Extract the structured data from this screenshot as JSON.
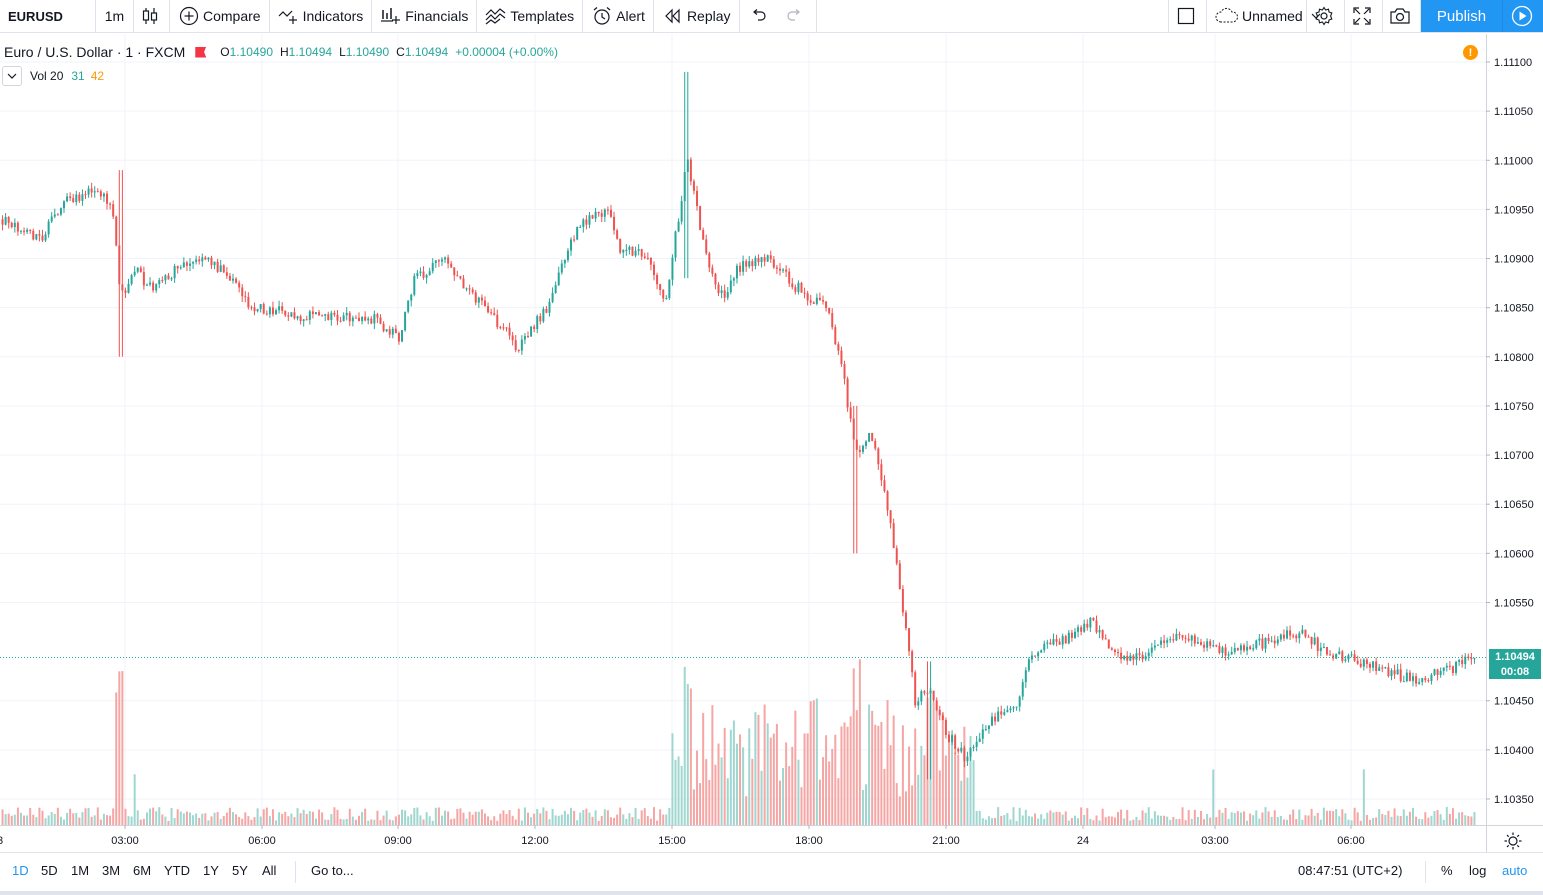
{
  "toolbar": {
    "symbol": "EURUSD",
    "interval": "1m",
    "compare": "Compare",
    "indicators": "Indicators",
    "financials": "Financials",
    "templates": "Templates",
    "alert": "Alert",
    "replay": "Replay",
    "layout_name": "Unnamed",
    "publish": "Publish"
  },
  "legend": {
    "title": "Euro / U.S. Dollar · 1 · FXCM",
    "open_label": "O",
    "open": "1.10490",
    "high_label": "H",
    "high": "1.10494",
    "low_label": "L",
    "low": "1.10490",
    "close_label": "C",
    "close": "1.10494",
    "change": "+0.00004 (+0.00%)"
  },
  "volume_legend": {
    "label": "Vol 20",
    "value": "31",
    "ma": "42"
  },
  "warning_badge": "!",
  "last_price": {
    "value": "1.10494",
    "countdown": "00:08"
  },
  "colors": {
    "up": "#26a69a",
    "down": "#ef5350",
    "vol_up": "#9fd6cf",
    "vol_down": "#f5a6a4",
    "accent": "#2196f3"
  },
  "chart_data": {
    "type": "candlestick",
    "y_ticks": [
      "1.11100",
      "1.11050",
      "1.11000",
      "1.10950",
      "1.10900",
      "1.10850",
      "1.10800",
      "1.10750",
      "1.10700",
      "1.10650",
      "1.10600",
      "1.10550",
      "1.10450",
      "1.10400",
      "1.10350"
    ],
    "ylim": [
      1.1033,
      1.1113
    ],
    "x_ticks": [
      "03:00",
      "06:00",
      "09:00",
      "12:00",
      "15:00",
      "18:00",
      "21:00",
      "24",
      "03:00",
      "06:00"
    ],
    "edge_tick": "3",
    "price_path": [
      [
        0,
        1.1094
      ],
      [
        0.025,
        1.1092
      ],
      [
        0.045,
        1.1096
      ],
      [
        0.065,
        1.1097
      ],
      [
        0.075,
        1.1095
      ],
      [
        0.08,
        1.1086
      ],
      [
        0.09,
        1.1089
      ],
      [
        0.1,
        1.1087
      ],
      [
        0.13,
        1.109
      ],
      [
        0.15,
        1.1089
      ],
      [
        0.17,
        1.1085
      ],
      [
        0.21,
        1.1084
      ],
      [
        0.25,
        1.1084
      ],
      [
        0.27,
        1.1082
      ],
      [
        0.28,
        1.1088
      ],
      [
        0.3,
        1.109
      ],
      [
        0.32,
        1.1086
      ],
      [
        0.34,
        1.1083
      ],
      [
        0.35,
        1.1081
      ],
      [
        0.37,
        1.1085
      ],
      [
        0.39,
        1.1093
      ],
      [
        0.41,
        1.1095
      ],
      [
        0.42,
        1.1091
      ],
      [
        0.44,
        1.109
      ],
      [
        0.45,
        1.1085
      ],
      [
        0.465,
        1.11
      ],
      [
        0.48,
        1.1089
      ],
      [
        0.49,
        1.1086
      ],
      [
        0.5,
        1.1089
      ],
      [
        0.52,
        1.109
      ],
      [
        0.54,
        1.1087
      ],
      [
        0.56,
        1.1085
      ],
      [
        0.57,
        1.1079
      ],
      [
        0.58,
        1.107
      ],
      [
        0.59,
        1.1072
      ],
      [
        0.6,
        1.1066
      ],
      [
        0.61,
        1.1056
      ],
      [
        0.615,
        1.1051
      ],
      [
        0.62,
        1.1045
      ],
      [
        0.63,
        1.1046
      ],
      [
        0.64,
        1.1042
      ],
      [
        0.655,
        1.1039
      ],
      [
        0.67,
        1.1043
      ],
      [
        0.69,
        1.1045
      ],
      [
        0.7,
        1.105
      ],
      [
        0.72,
        1.1051
      ],
      [
        0.74,
        1.1053
      ],
      [
        0.76,
        1.1049
      ],
      [
        0.78,
        1.105
      ],
      [
        0.8,
        1.1052
      ],
      [
        0.83,
        1.105
      ],
      [
        0.86,
        1.1051
      ],
      [
        0.88,
        1.1052
      ],
      [
        0.9,
        1.105
      ],
      [
        0.92,
        1.1049
      ],
      [
        0.94,
        1.1048
      ],
      [
        0.96,
        1.1047
      ],
      [
        0.98,
        1.1048
      ],
      [
        1.0,
        1.10494
      ]
    ],
    "spikes": [
      {
        "at": 0.08,
        "high": 1.1099,
        "low": 1.108
      },
      {
        "at": 0.465,
        "high": 1.1109,
        "low": 1.1088
      },
      {
        "at": 0.58,
        "high": 1.1075,
        "low": 1.106
      },
      {
        "at": 0.63,
        "high": 1.1049,
        "low": 1.1037
      }
    ]
  },
  "bottom": {
    "ranges": [
      "1D",
      "5D",
      "1M",
      "3M",
      "6M",
      "YTD",
      "1Y",
      "5Y",
      "All"
    ],
    "active_range": "1D",
    "goto": "Go to...",
    "clock": "08:47:51 (UTC+2)",
    "percent": "%",
    "log": "log",
    "auto": "auto"
  }
}
